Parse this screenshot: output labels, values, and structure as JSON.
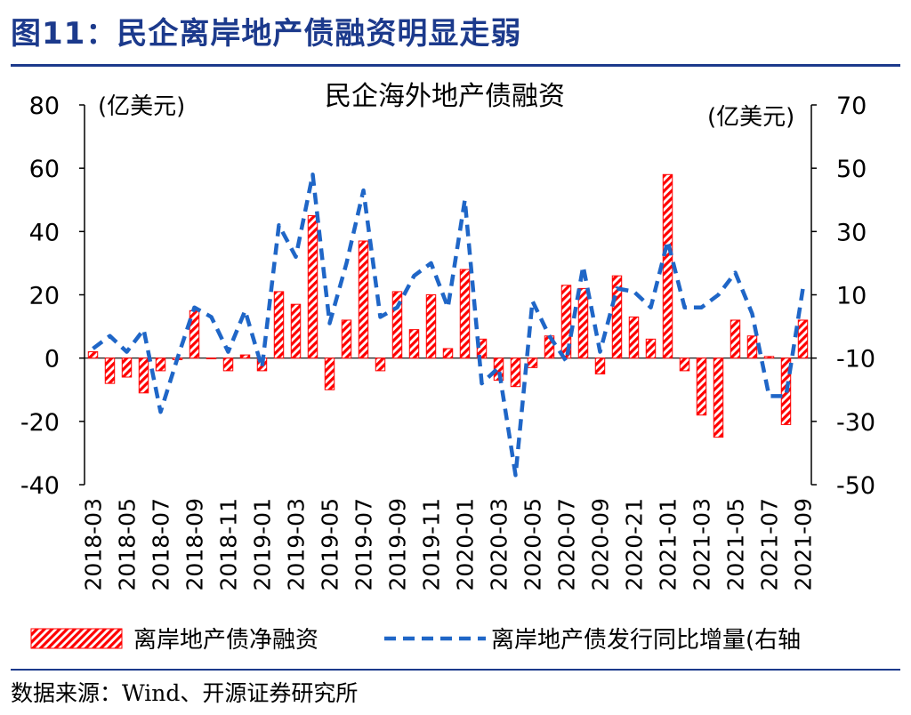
{
  "figure": {
    "title": "图11：民企离岸地产债融资明显走弱",
    "source": "数据来源：Wind、开源证券研究所"
  },
  "colors": {
    "title_blue": "#1c3a8c",
    "bar_red": "#ff0000",
    "line_blue": "#1f66c7",
    "axis": "#000000"
  },
  "chart_data": {
    "type": "bar",
    "title": "民企海外地产债融资",
    "ylabel": "(亿美元)",
    "y2label": "(亿美元)",
    "ylim": [
      -40,
      80
    ],
    "y2lim": [
      -50,
      70
    ],
    "yticks": [
      -40,
      -20,
      0,
      20,
      40,
      60,
      80
    ],
    "y2ticks": [
      -50,
      -30,
      -10,
      10,
      30,
      50,
      70
    ],
    "x_tick_labels": [
      "2018-03",
      "2018-05",
      "2018-07",
      "2018-09",
      "2018-11",
      "2019-01",
      "2019-03",
      "2019-05",
      "2019-07",
      "2019-09",
      "2019-11",
      "2020-01",
      "2020-03",
      "2020-05",
      "2020-07",
      "2020-09",
      "2020-21",
      "2021-01",
      "2021-03",
      "2021-05",
      "2021-07",
      "2021-09"
    ],
    "categories": [
      "2018-03",
      "2018-04",
      "2018-05",
      "2018-06",
      "2018-07",
      "2018-08",
      "2018-09",
      "2018-10",
      "2018-11",
      "2018-12",
      "2019-01",
      "2019-02",
      "2019-03",
      "2019-04",
      "2019-05",
      "2019-06",
      "2019-07",
      "2019-08",
      "2019-09",
      "2019-10",
      "2019-11",
      "2019-12",
      "2020-01",
      "2020-02",
      "2020-03",
      "2020-04",
      "2020-05",
      "2020-06",
      "2020-07",
      "2020-08",
      "2020-09",
      "2020-10",
      "2020-11",
      "2020-12",
      "2021-01",
      "2021-02",
      "2021-03",
      "2021-04",
      "2021-05",
      "2021-06",
      "2021-07",
      "2021-08",
      "2021-09"
    ],
    "series": [
      {
        "name": "离岸地产债净融资",
        "type": "bar",
        "axis": "left",
        "values": [
          2,
          -8,
          -6,
          -11,
          -4,
          -0.5,
          15,
          0,
          -4,
          1,
          -4,
          21,
          17,
          45,
          -10,
          12,
          37,
          -4,
          21,
          9,
          20,
          3,
          28,
          6,
          -7,
          -9,
          -3,
          7,
          23,
          22,
          -5,
          26,
          13,
          6,
          58,
          -4,
          -18,
          -25,
          12,
          7,
          0.5,
          -21,
          12
        ]
      },
      {
        "name": "离岸地产债发行同比增量(右轴",
        "type": "line",
        "axis": "right",
        "style": "dashed",
        "values": [
          -7,
          -3,
          -8,
          -1,
          -27,
          -10,
          6,
          3,
          -8,
          5,
          -13,
          32,
          22,
          48,
          1,
          20,
          43,
          3,
          6,
          16,
          20,
          6,
          40,
          -18,
          -13,
          -47,
          8,
          -3,
          -11,
          19,
          -8,
          12,
          11,
          6,
          27,
          6,
          6,
          10,
          17,
          4,
          -22,
          -22,
          12
        ]
      }
    ],
    "legend": [
      "离岸地产债净融资",
      "离岸地产债发行同比增量(右轴"
    ],
    "legend_position": "bottom",
    "grid": false
  }
}
